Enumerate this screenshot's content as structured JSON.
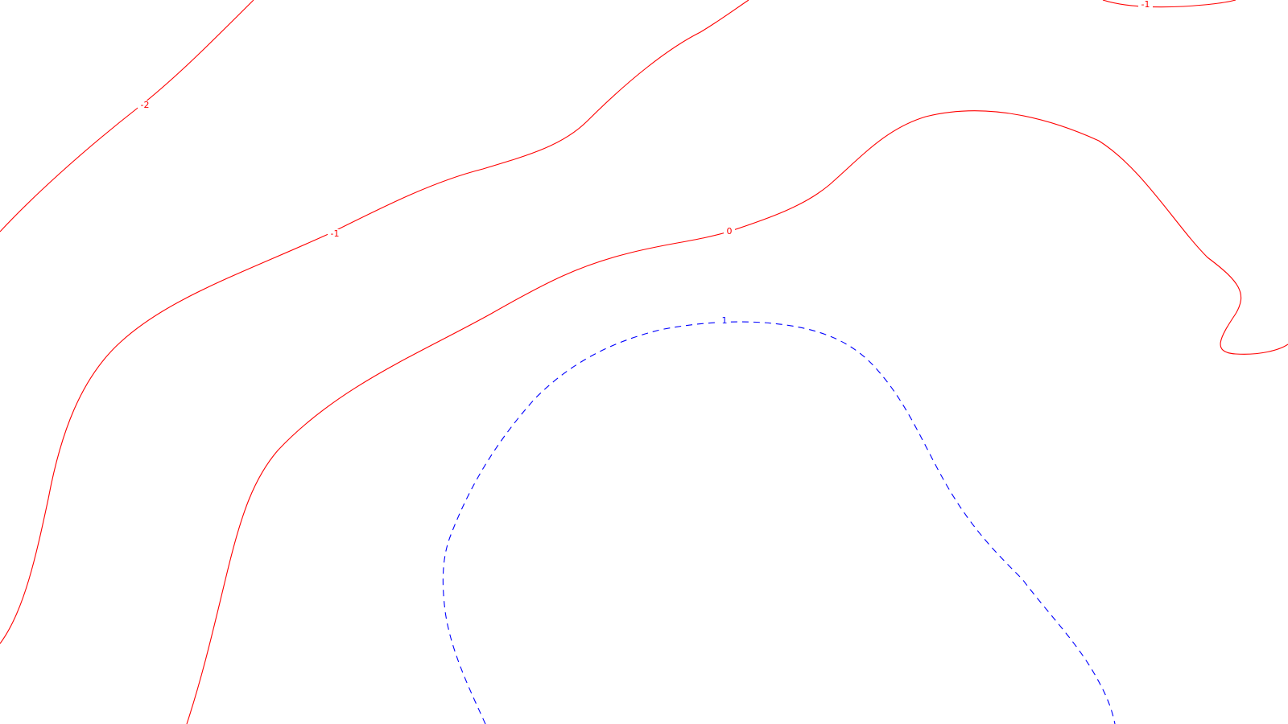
{
  "map": {
    "colors": {
      "positive": "#0000ff",
      "non_positive": "#ff0000",
      "background": "#ffffff"
    },
    "contours": [
      {
        "level": "-2",
        "style": "solid",
        "color": "#ff0000"
      },
      {
        "level": "-1",
        "style": "solid",
        "color": "#ff0000"
      },
      {
        "level": "0",
        "style": "solid",
        "color": "#ff0000"
      },
      {
        "level": "1",
        "style": "dashed",
        "color": "#0000ff"
      },
      {
        "level": "-1",
        "style": "solid",
        "color": "#ff0000"
      }
    ]
  }
}
